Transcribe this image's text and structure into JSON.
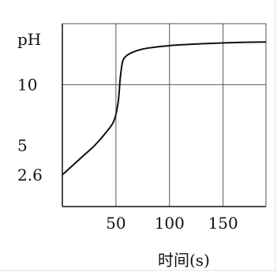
{
  "chart_data": {
    "type": "line",
    "title": "",
    "xlabel": "时间(s)",
    "ylabel": "pH",
    "xlim": [
      0,
      190
    ],
    "ylim": [
      0,
      15
    ],
    "x_ticks": [
      50,
      100,
      150
    ],
    "y_ticks": [
      2.6,
      5,
      10
    ],
    "grid": true,
    "legend": "none",
    "series": [
      {
        "x": [
          0,
          10,
          20,
          30,
          40,
          48,
          52,
          54,
          56,
          58,
          62,
          70,
          80,
          100,
          130,
          160,
          190
        ],
        "y": [
          2.6,
          3.4,
          4.2,
          5.0,
          6.0,
          7.0,
          8.5,
          10.5,
          11.8,
          12.2,
          12.5,
          12.8,
          13.0,
          13.2,
          13.35,
          13.45,
          13.5
        ]
      }
    ],
    "colors": {
      "line": "#111111",
      "grid": "#555555",
      "axis": "#111111"
    }
  }
}
